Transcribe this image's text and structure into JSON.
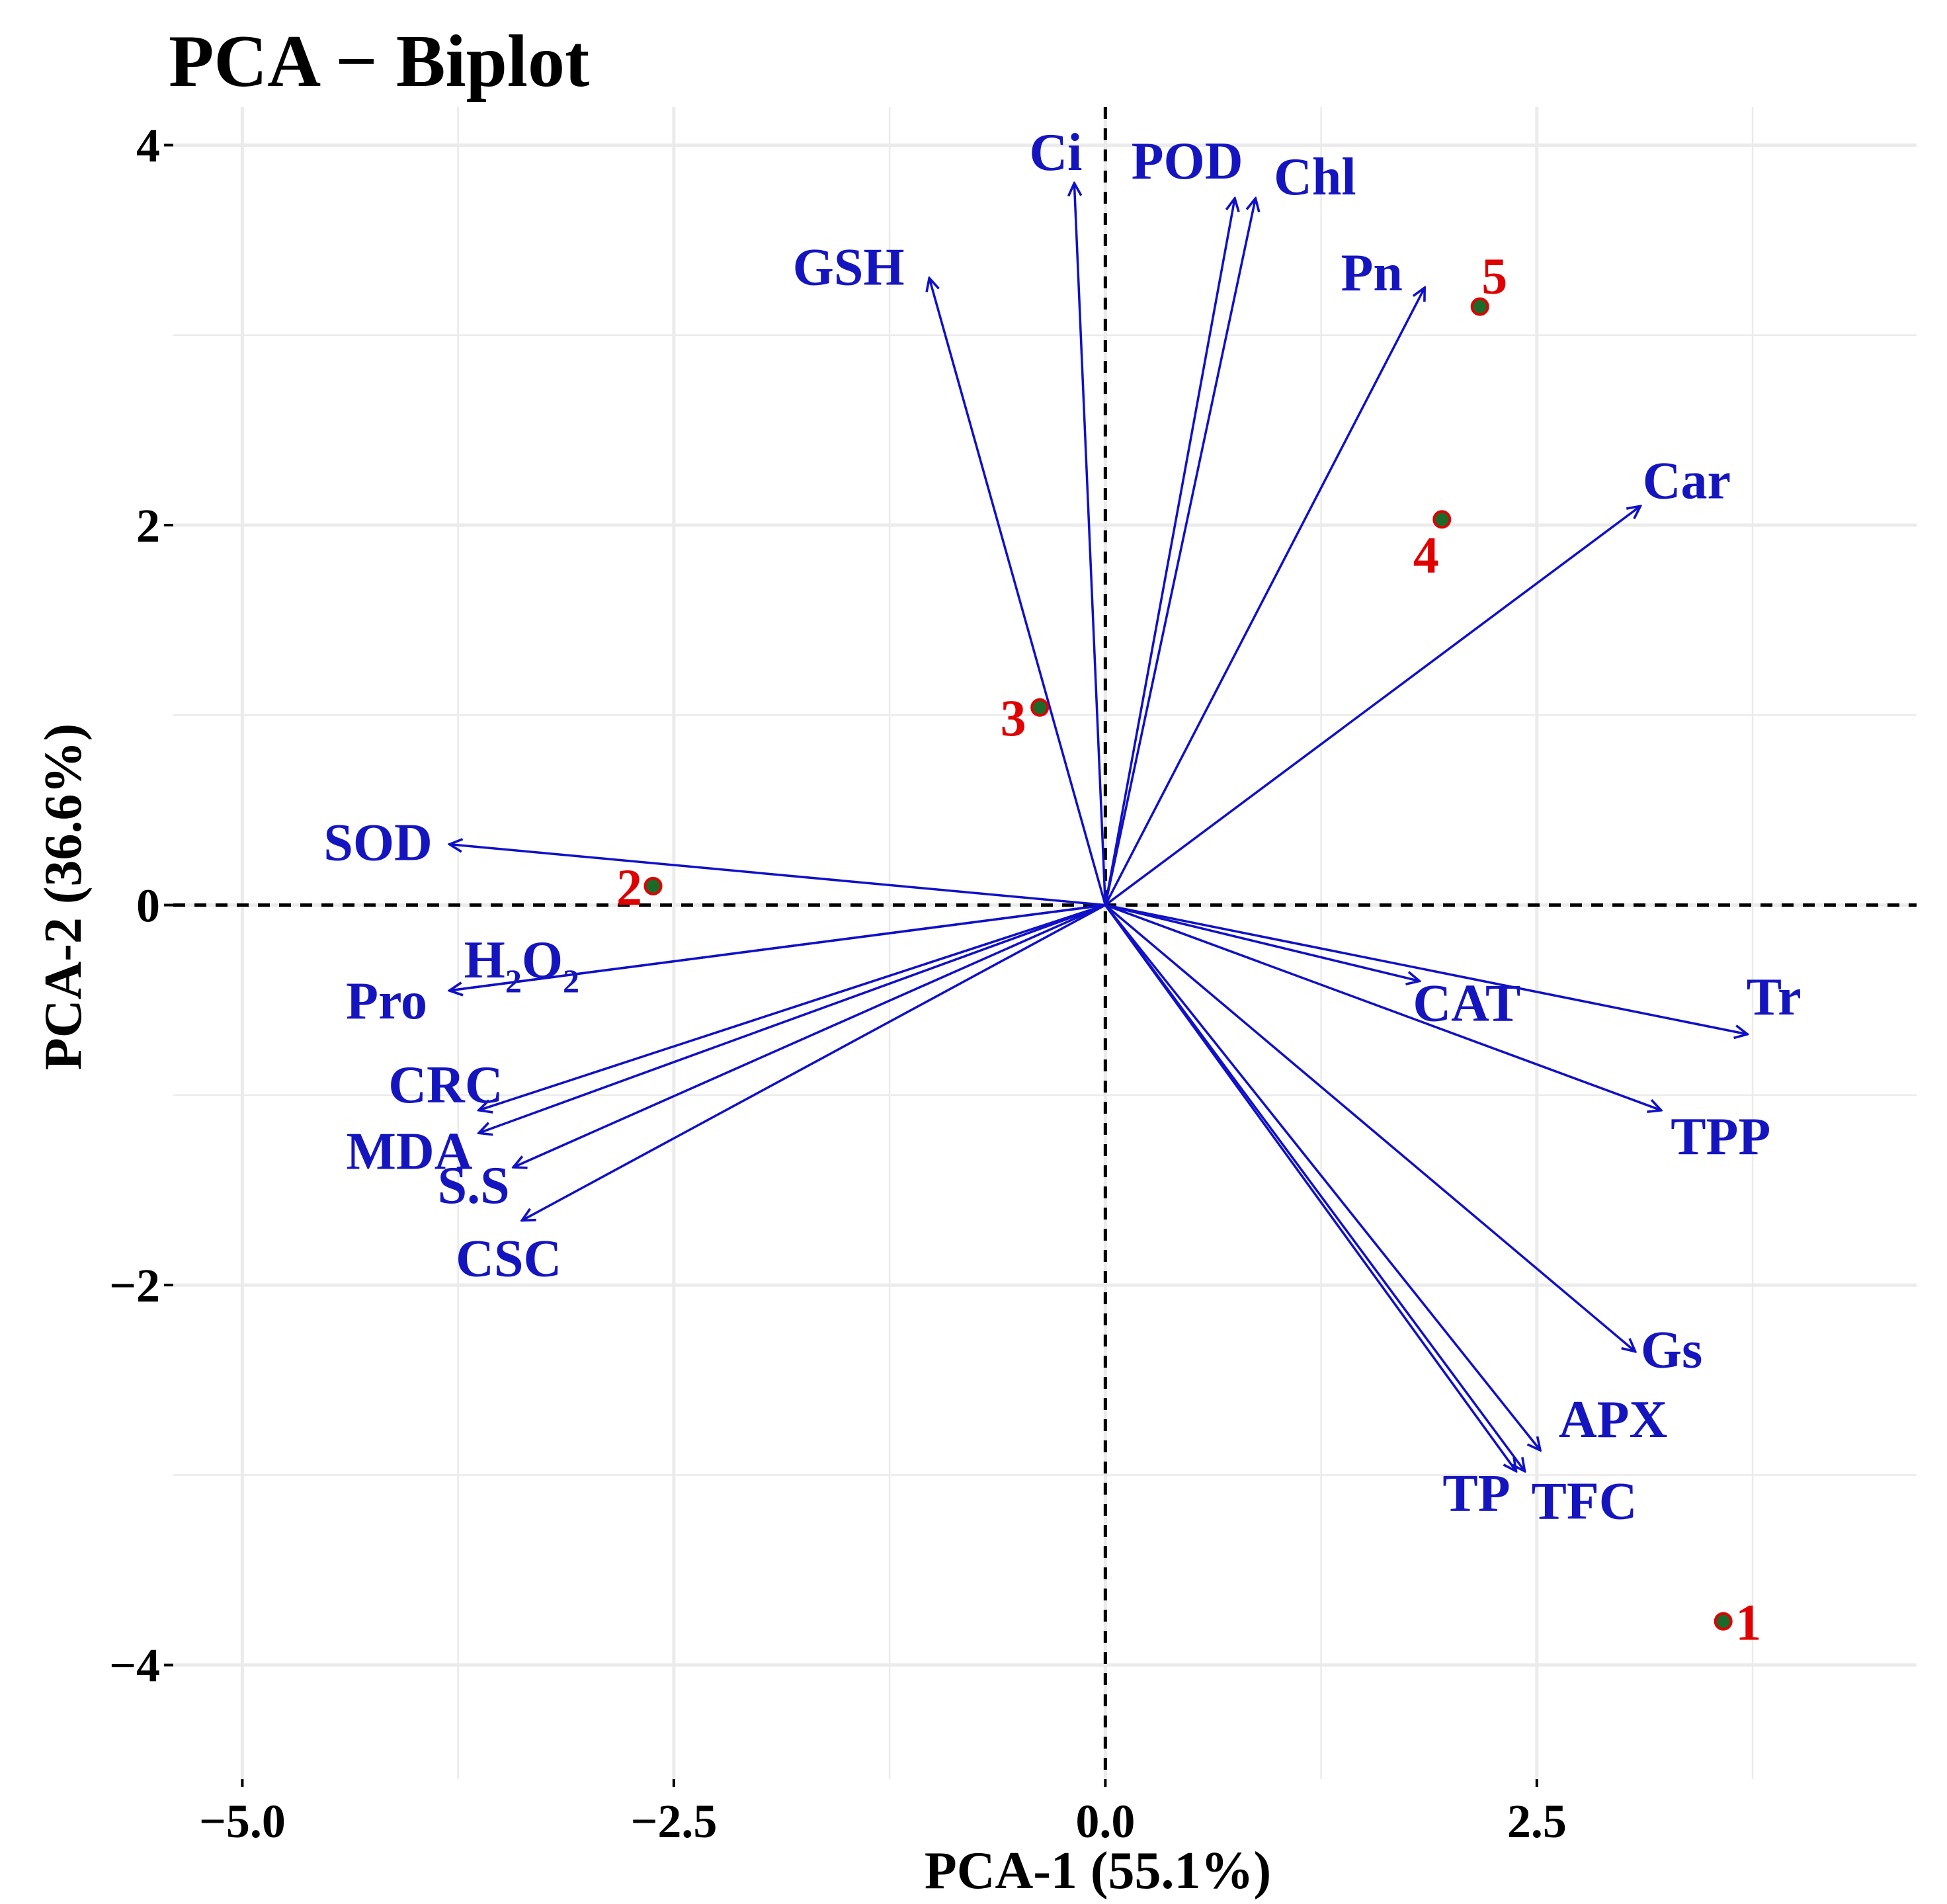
{
  "chart_data": {
    "type": "scatter",
    "title": "PCA − Biplot",
    "xlabel": "PCA-1 (55.1%)",
    "ylabel": "PCA-2 (36.6%)",
    "xlim": [
      -5.4,
      4.7
    ],
    "ylim": [
      -4.6,
      4.2
    ],
    "x_ticks": [
      {
        "value": -5.0,
        "label": "−5.0"
      },
      {
        "value": -2.5,
        "label": "−2.5"
      },
      {
        "value": 0.0,
        "label": "0.0"
      },
      {
        "value": 2.5,
        "label": "2.5"
      }
    ],
    "y_ticks": [
      {
        "value": 4,
        "label": "4"
      },
      {
        "value": 2,
        "label": "2"
      },
      {
        "value": 0,
        "label": "0"
      },
      {
        "value": -2,
        "label": "−2"
      },
      {
        "value": -4,
        "label": "−4"
      }
    ],
    "grid": true,
    "reference_lines": {
      "x": 0,
      "y": 0,
      "style": "dashed"
    },
    "loadings": [
      {
        "name": "Ci",
        "x": -0.18,
        "y": 3.8
      },
      {
        "name": "POD",
        "x": 0.75,
        "y": 3.72
      },
      {
        "name": "Chl",
        "x": 0.87,
        "y": 3.72
      },
      {
        "name": "GSH",
        "x": -1.02,
        "y": 3.3
      },
      {
        "name": "Pn",
        "x": 1.85,
        "y": 3.25
      },
      {
        "name": "Car",
        "x": 3.1,
        "y": 2.1
      },
      {
        "name": "SOD",
        "x": -3.8,
        "y": 0.32
      },
      {
        "name": "H2O2",
        "x": -3.8,
        "y": -0.45
      },
      {
        "name": "Pro",
        "x": -3.8,
        "y": -0.45
      },
      {
        "name": "CRC",
        "x": -3.63,
        "y": -1.08
      },
      {
        "name": "MDA",
        "x": -3.63,
        "y": -1.2
      },
      {
        "name": "S.S",
        "x": -3.43,
        "y": -1.38
      },
      {
        "name": "CSC",
        "x": -3.38,
        "y": -1.66
      },
      {
        "name": "CAT",
        "x": 1.82,
        "y": -0.4
      },
      {
        "name": "Tr",
        "x": 3.72,
        "y": -0.68
      },
      {
        "name": "TPP",
        "x": 3.22,
        "y": -1.08
      },
      {
        "name": "Gs",
        "x": 3.07,
        "y": -2.35
      },
      {
        "name": "APX",
        "x": 2.52,
        "y": -2.87
      },
      {
        "name": "TP",
        "x": 2.38,
        "y": -2.98
      },
      {
        "name": "TFC",
        "x": 2.43,
        "y": -2.98
      }
    ],
    "observations": [
      {
        "label": "1",
        "x": 3.58,
        "y": -3.77
      },
      {
        "label": "2",
        "x": -2.62,
        "y": 0.1
      },
      {
        "label": "3",
        "x": -0.38,
        "y": 1.04
      },
      {
        "label": "4",
        "x": 1.95,
        "y": 2.03
      },
      {
        "label": "5",
        "x": 2.17,
        "y": 3.15
      }
    ],
    "colors": {
      "arrows": "#1010c8",
      "loading_labels": "#1515c0",
      "observation_fill": "#1a6b2a",
      "observation_stroke": "#e00000",
      "observation_labels": "#e00000",
      "grid": "#ebebeb",
      "reference": "#000000"
    }
  }
}
